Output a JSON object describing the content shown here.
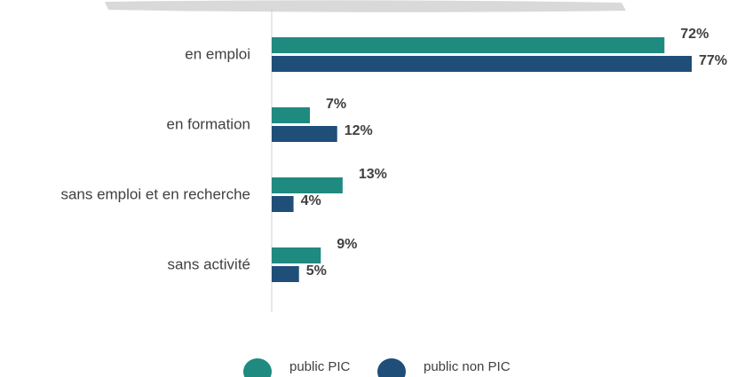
{
  "chart_data": {
    "type": "bar",
    "orientation": "horizontal",
    "categories": [
      "en emploi",
      "en formation",
      "sans emploi et en recherche",
      "sans activité"
    ],
    "series": [
      {
        "name": "public PIC",
        "color": "#1f8a80",
        "values": [
          72,
          7,
          13,
          9
        ],
        "value_labels": [
          "72%",
          "7%",
          "13%",
          "9%"
        ]
      },
      {
        "name": "public non PIC",
        "color": "#1f4e79",
        "values": [
          77,
          12,
          4,
          5
        ],
        "value_labels": [
          "77%",
          "12%",
          "4%",
          "5%"
        ]
      }
    ]
  }
}
